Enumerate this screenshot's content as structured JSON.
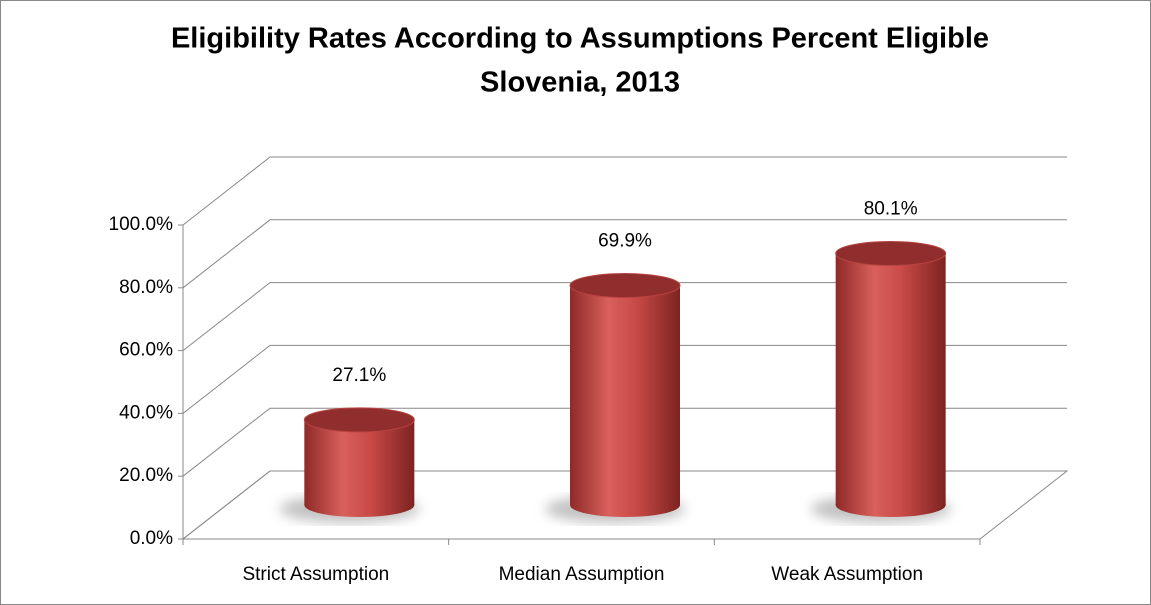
{
  "chart_data": {
    "type": "bar3d",
    "title": [
      "Eligibility Rates According to Assumptions Percent Eligible",
      "Slovenia, 2013"
    ],
    "categories": [
      "Strict Assumption",
      "Median Assumption",
      "Weak Assumption"
    ],
    "values": [
      27.1,
      69.9,
      80.1
    ],
    "value_labels": [
      "27.1%",
      "69.9%",
      "80.1%"
    ],
    "color": "#c0413f",
    "ylim": [
      0,
      100
    ],
    "yticks": [
      {
        "value": 0,
        "label": "0.0%"
      },
      {
        "value": 20,
        "label": "20.0%"
      },
      {
        "value": 40,
        "label": "40.0%"
      },
      {
        "value": 60,
        "label": "60.0%"
      },
      {
        "value": 80,
        "label": "80.0%"
      },
      {
        "value": 100,
        "label": "100.0%"
      }
    ],
    "grid": true
  }
}
